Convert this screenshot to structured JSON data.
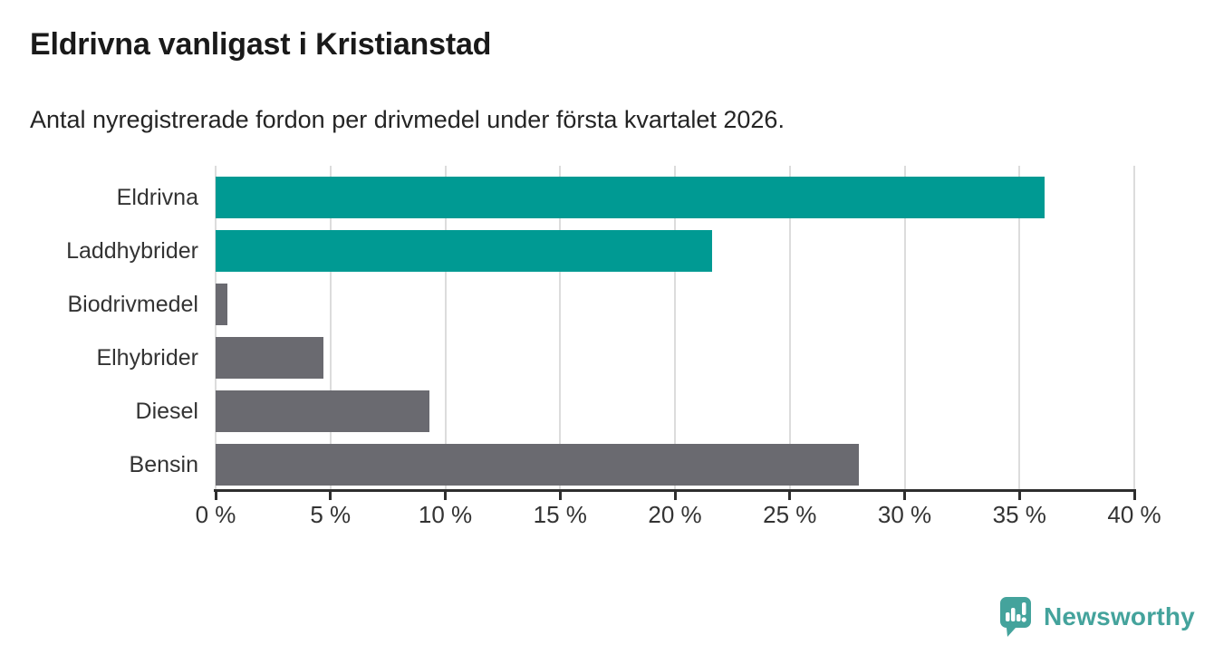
{
  "header": {
    "title": "Eldrivna vanligast i Kristianstad",
    "subtitle": "Antal nyregistrerade fordon per drivmedel under första kvartalet 2026."
  },
  "chart_data": {
    "type": "bar",
    "orientation": "horizontal",
    "title": "Eldrivna vanligast i Kristianstad",
    "subtitle": "Antal nyregistrerade fordon per drivmedel under första kvartalet 2026.",
    "categories": [
      "Eldrivna",
      "Laddhybrider",
      "Biodrivmedel",
      "Elhybrider",
      "Diesel",
      "Bensin"
    ],
    "values": [
      36.1,
      21.6,
      0.5,
      4.7,
      9.3,
      28.0
    ],
    "unit": "%",
    "bar_colors": [
      "#009a93",
      "#009a93",
      "#6a6a70",
      "#6a6a70",
      "#6a6a70",
      "#6a6a70"
    ],
    "xlim": [
      0,
      40
    ],
    "xticks": [
      0,
      5,
      10,
      15,
      20,
      25,
      30,
      35,
      40
    ],
    "xtick_labels": [
      "0 %",
      "5 %",
      "10 %",
      "15 %",
      "20 %",
      "25 %",
      "30 %",
      "35 %",
      "40 %"
    ],
    "grid": "vertical gridlines on",
    "legend_position": "none"
  },
  "colors": {
    "accent_teal": "#009a93",
    "neutral_gray": "#6a6a70",
    "gridline": "#dcdcdc",
    "axis": "#2e2e2e",
    "title_text": "#1a1a1a",
    "label_text": "#333333",
    "logo_teal": "#44a39c"
  },
  "footer": {
    "brand": "Newsworthy",
    "logo_icon": "newsworthy-bubble-chart-icon"
  }
}
